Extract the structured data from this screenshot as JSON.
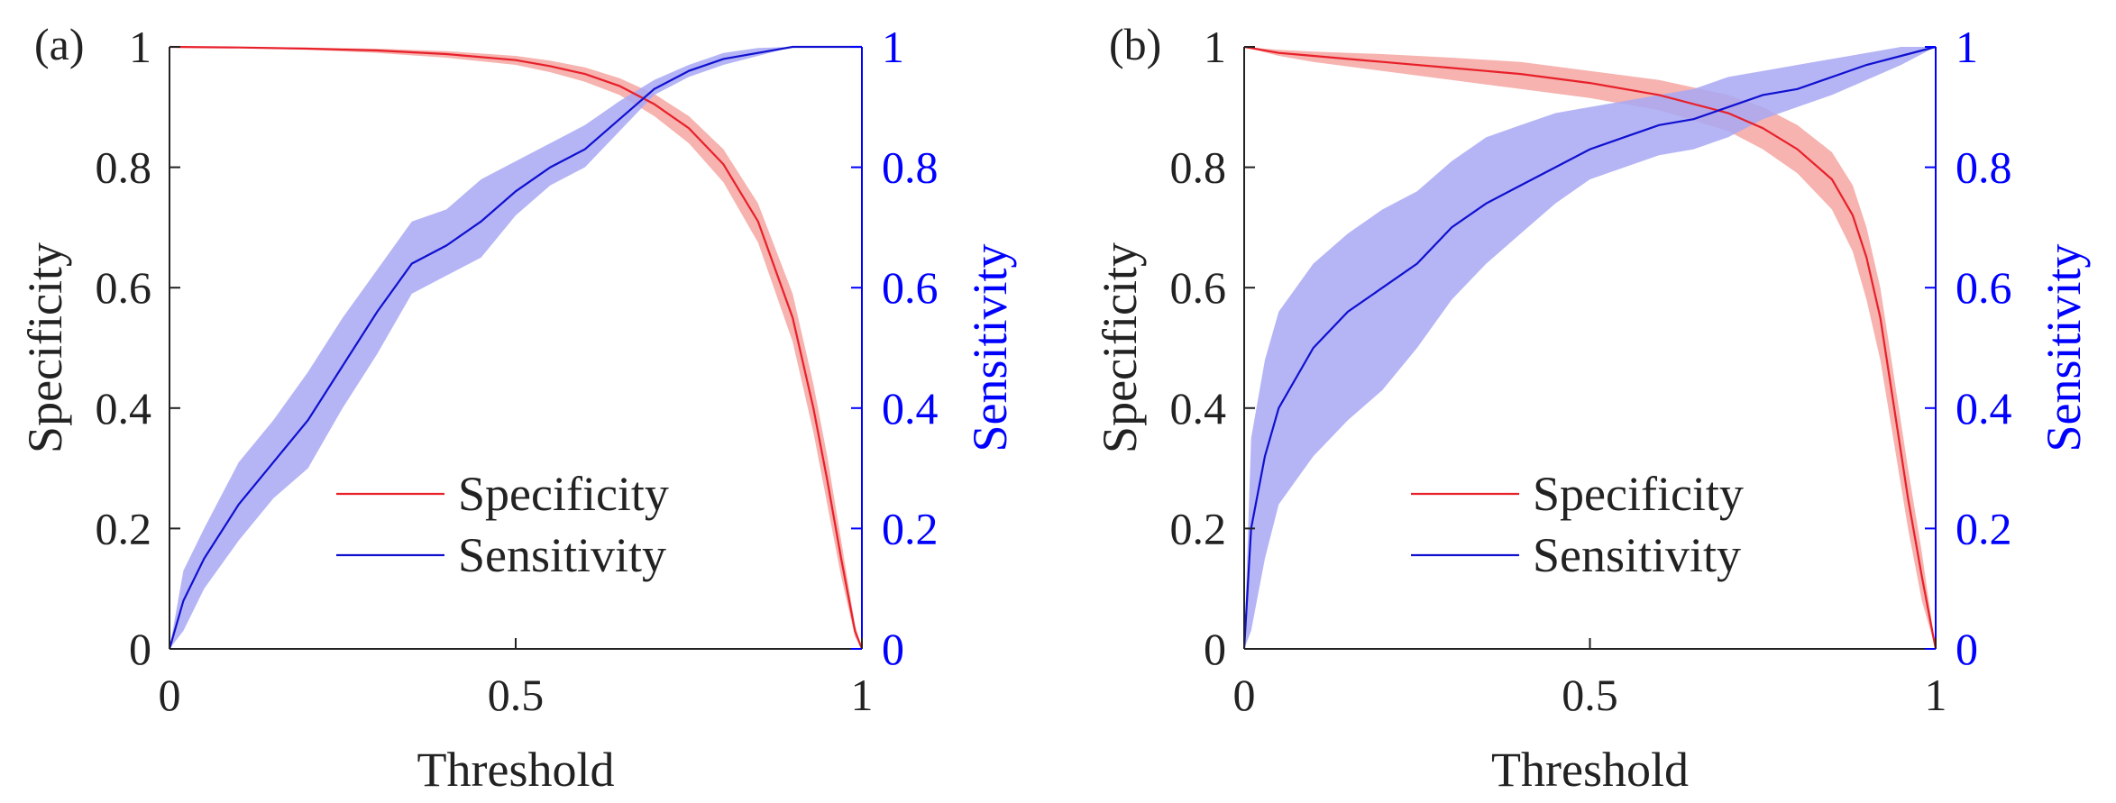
{
  "figure": {
    "panels": [
      {
        "label": "(a)",
        "xlabel": "Threshold",
        "ylabel_left": "Specificity",
        "ylabel_right": "Sensitivity",
        "x_ticks": [
          "0",
          "0.5",
          "1"
        ],
        "y_ticks_left": [
          "0",
          "0.2",
          "0.4",
          "0.6",
          "0.8",
          "1"
        ],
        "y_ticks_right": [
          "0",
          "0.2",
          "0.4",
          "0.6",
          "0.8",
          "1"
        ],
        "legend": [
          "Specificity",
          "Sensitivity"
        ]
      },
      {
        "label": "(b)",
        "xlabel": "Threshold",
        "ylabel_left": "Specificity",
        "ylabel_right": "Sensitivity",
        "x_ticks": [
          "0",
          "0.5",
          "1"
        ],
        "y_ticks_left": [
          "0",
          "0.2",
          "0.4",
          "0.6",
          "0.8",
          "1"
        ],
        "y_ticks_right": [
          "0",
          "0.2",
          "0.4",
          "0.6",
          "0.8",
          "1"
        ],
        "legend": [
          "Specificity",
          "Sensitivity"
        ]
      }
    ]
  },
  "colors": {
    "specificity": "#e8202a",
    "specificity_band": "#f4a09b",
    "sensitivity": "#1010d0",
    "sensitivity_band": "#a8a8f4",
    "right_axis": "#0000ff",
    "left_axis": "#222222"
  },
  "chart_data": [
    {
      "type": "line",
      "panel": "(a)",
      "title": "",
      "xlabel": "Threshold",
      "ylabel": "Specificity",
      "ylabel_right": "Sensitivity",
      "xlim": [
        0,
        1
      ],
      "ylim": [
        0,
        1
      ],
      "ylim_right": [
        0,
        1
      ],
      "legend_position": "bottom-center",
      "series": [
        {
          "name": "Specificity",
          "axis": "left",
          "x": [
            0,
            0.1,
            0.2,
            0.3,
            0.4,
            0.5,
            0.55,
            0.6,
            0.65,
            0.7,
            0.75,
            0.8,
            0.85,
            0.9,
            0.93,
            0.95,
            0.97,
            0.99,
            1.0
          ],
          "y": [
            1.0,
            0.999,
            0.997,
            0.994,
            0.988,
            0.978,
            0.968,
            0.955,
            0.935,
            0.905,
            0.865,
            0.805,
            0.71,
            0.55,
            0.4,
            0.28,
            0.15,
            0.03,
            0.0
          ],
          "lower": [
            1.0,
            0.998,
            0.995,
            0.99,
            0.982,
            0.97,
            0.958,
            0.942,
            0.92,
            0.885,
            0.84,
            0.775,
            0.675,
            0.51,
            0.36,
            0.24,
            0.12,
            0.02,
            0.0
          ],
          "upper": [
            1.0,
            1.0,
            0.999,
            0.997,
            0.993,
            0.985,
            0.977,
            0.966,
            0.948,
            0.922,
            0.885,
            0.83,
            0.74,
            0.59,
            0.44,
            0.32,
            0.18,
            0.04,
            0.0
          ]
        },
        {
          "name": "Sensitivity",
          "axis": "right",
          "x": [
            0,
            0.02,
            0.05,
            0.1,
            0.15,
            0.2,
            0.25,
            0.3,
            0.35,
            0.4,
            0.45,
            0.5,
            0.55,
            0.6,
            0.65,
            0.7,
            0.75,
            0.8,
            0.85,
            0.9,
            0.95,
            1.0
          ],
          "y": [
            0.0,
            0.08,
            0.15,
            0.24,
            0.31,
            0.38,
            0.47,
            0.56,
            0.64,
            0.67,
            0.71,
            0.76,
            0.8,
            0.83,
            0.88,
            0.93,
            0.96,
            0.98,
            0.99,
            1.0,
            1.0,
            1.0
          ],
          "lower": [
            0.0,
            0.03,
            0.1,
            0.18,
            0.25,
            0.3,
            0.4,
            0.49,
            0.59,
            0.62,
            0.65,
            0.72,
            0.77,
            0.8,
            0.86,
            0.92,
            0.95,
            0.97,
            0.985,
            1.0,
            1.0,
            1.0
          ],
          "upper": [
            0.0,
            0.13,
            0.2,
            0.31,
            0.38,
            0.46,
            0.55,
            0.63,
            0.71,
            0.73,
            0.78,
            0.81,
            0.84,
            0.87,
            0.91,
            0.945,
            0.97,
            0.99,
            0.998,
            1.0,
            1.0,
            1.0
          ]
        }
      ]
    },
    {
      "type": "line",
      "panel": "(b)",
      "title": "",
      "xlabel": "Threshold",
      "ylabel": "Specificity",
      "ylabel_right": "Sensitivity",
      "xlim": [
        0,
        1
      ],
      "ylim": [
        0,
        1
      ],
      "ylim_right": [
        0,
        1
      ],
      "legend_position": "bottom-center",
      "series": [
        {
          "name": "Specificity",
          "axis": "left",
          "x": [
            0,
            0.05,
            0.1,
            0.2,
            0.3,
            0.4,
            0.5,
            0.6,
            0.7,
            0.75,
            0.8,
            0.85,
            0.88,
            0.9,
            0.92,
            0.94,
            0.96,
            0.98,
            1.0
          ],
          "y": [
            1.0,
            0.99,
            0.985,
            0.975,
            0.965,
            0.955,
            0.94,
            0.92,
            0.89,
            0.865,
            0.83,
            0.78,
            0.72,
            0.65,
            0.55,
            0.4,
            0.25,
            0.12,
            0.0
          ],
          "lower": [
            1.0,
            0.985,
            0.975,
            0.96,
            0.945,
            0.93,
            0.915,
            0.895,
            0.86,
            0.83,
            0.79,
            0.73,
            0.66,
            0.58,
            0.48,
            0.34,
            0.2,
            0.08,
            0.0
          ],
          "upper": [
            1.0,
            0.995,
            0.992,
            0.988,
            0.982,
            0.975,
            0.96,
            0.945,
            0.92,
            0.9,
            0.87,
            0.825,
            0.77,
            0.7,
            0.6,
            0.45,
            0.3,
            0.16,
            0.0
          ]
        },
        {
          "name": "Sensitivity",
          "axis": "right",
          "x": [
            0,
            0.01,
            0.03,
            0.05,
            0.1,
            0.15,
            0.2,
            0.25,
            0.3,
            0.35,
            0.4,
            0.45,
            0.5,
            0.55,
            0.6,
            0.65,
            0.7,
            0.75,
            0.8,
            0.85,
            0.9,
            0.95,
            1.0
          ],
          "y": [
            0.0,
            0.2,
            0.32,
            0.4,
            0.5,
            0.56,
            0.6,
            0.64,
            0.7,
            0.74,
            0.77,
            0.8,
            0.83,
            0.85,
            0.87,
            0.88,
            0.9,
            0.92,
            0.93,
            0.95,
            0.97,
            0.985,
            1.0
          ],
          "lower": [
            0.0,
            0.03,
            0.15,
            0.24,
            0.32,
            0.38,
            0.43,
            0.5,
            0.58,
            0.64,
            0.69,
            0.74,
            0.78,
            0.8,
            0.82,
            0.83,
            0.85,
            0.88,
            0.9,
            0.92,
            0.945,
            0.97,
            1.0
          ],
          "upper": [
            0.0,
            0.35,
            0.48,
            0.56,
            0.64,
            0.69,
            0.73,
            0.76,
            0.81,
            0.85,
            0.87,
            0.89,
            0.9,
            0.91,
            0.92,
            0.93,
            0.95,
            0.96,
            0.97,
            0.98,
            0.99,
            1.0,
            1.0
          ]
        }
      ]
    }
  ]
}
